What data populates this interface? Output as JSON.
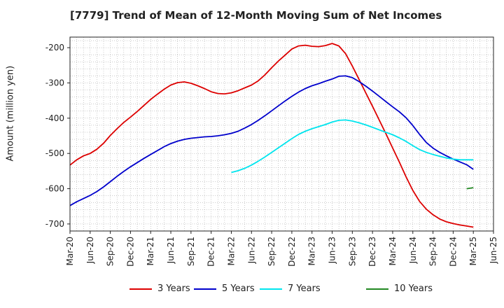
{
  "chart_data": {
    "type": "line",
    "title": "[7779]  Trend of Mean of 12-Month Moving Sum of Net Incomes",
    "xlabel": "",
    "ylabel": "Amount (million yen)",
    "ylim": [
      -720,
      -170
    ],
    "y_ticks": [
      -200,
      -300,
      -400,
      -500,
      -600,
      -700
    ],
    "x_ticks": [
      "Mar-20",
      "Jun-20",
      "Sep-20",
      "Dec-20",
      "Mar-21",
      "Jun-21",
      "Sep-21",
      "Dec-21",
      "Mar-22",
      "Jun-22",
      "Sep-22",
      "Dec-22",
      "Mar-23",
      "Jun-23",
      "Sep-23",
      "Dec-23",
      "Mar-24",
      "Jun-24",
      "Sep-24",
      "Dec-24",
      "Mar-25",
      "Jun-25"
    ],
    "grid": true,
    "legend_position": "bottom",
    "series": [
      {
        "name": "3 Years",
        "color": "#dd0000",
        "values": [
          [
            "2020-03",
            -533
          ],
          [
            "2020-04",
            -518
          ],
          [
            "2020-05",
            -507
          ],
          [
            "2020-06",
            -500
          ],
          [
            "2020-07",
            -488
          ],
          [
            "2020-08",
            -471
          ],
          [
            "2020-09",
            -449
          ],
          [
            "2020-10",
            -430
          ],
          [
            "2020-11",
            -412
          ],
          [
            "2020-12",
            -397
          ],
          [
            "2021-01",
            -381
          ],
          [
            "2021-02",
            -364
          ],
          [
            "2021-03",
            -347
          ],
          [
            "2021-04",
            -332
          ],
          [
            "2021-05",
            -318
          ],
          [
            "2021-06",
            -306
          ],
          [
            "2021-07",
            -299
          ],
          [
            "2021-08",
            -297
          ],
          [
            "2021-09",
            -301
          ],
          [
            "2021-10",
            -308
          ],
          [
            "2021-11",
            -316
          ],
          [
            "2021-12",
            -325
          ],
          [
            "2022-01",
            -330
          ],
          [
            "2022-02",
            -331
          ],
          [
            "2022-03",
            -328
          ],
          [
            "2022-04",
            -322
          ],
          [
            "2022-05",
            -314
          ],
          [
            "2022-06",
            -306
          ],
          [
            "2022-07",
            -294
          ],
          [
            "2022-08",
            -277
          ],
          [
            "2022-09",
            -257
          ],
          [
            "2022-10",
            -238
          ],
          [
            "2022-11",
            -221
          ],
          [
            "2022-12",
            -204
          ],
          [
            "2023-01",
            -195
          ],
          [
            "2023-02",
            -193
          ],
          [
            "2023-03",
            -196
          ],
          [
            "2023-04",
            -197
          ],
          [
            "2023-05",
            -194
          ],
          [
            "2023-06",
            -188
          ],
          [
            "2023-07",
            -195
          ],
          [
            "2023-08",
            -217
          ],
          [
            "2023-09",
            -252
          ],
          [
            "2023-10",
            -290
          ],
          [
            "2023-11",
            -328
          ],
          [
            "2023-12",
            -366
          ],
          [
            "2024-01",
            -405
          ],
          [
            "2024-02",
            -444
          ],
          [
            "2024-03",
            -485
          ],
          [
            "2024-04",
            -525
          ],
          [
            "2024-05",
            -567
          ],
          [
            "2024-06",
            -605
          ],
          [
            "2024-07",
            -636
          ],
          [
            "2024-08",
            -658
          ],
          [
            "2024-09",
            -674
          ],
          [
            "2024-10",
            -686
          ],
          [
            "2024-11",
            -694
          ],
          [
            "2024-12",
            -699
          ],
          [
            "2025-01",
            -703
          ],
          [
            "2025-02",
            -706
          ],
          [
            "2025-03",
            -709
          ]
        ]
      },
      {
        "name": "5 Years",
        "color": "#0000cc",
        "values": [
          [
            "2020-03",
            -648
          ],
          [
            "2020-04",
            -637
          ],
          [
            "2020-05",
            -628
          ],
          [
            "2020-06",
            -619
          ],
          [
            "2020-07",
            -608
          ],
          [
            "2020-08",
            -595
          ],
          [
            "2020-09",
            -580
          ],
          [
            "2020-10",
            -565
          ],
          [
            "2020-11",
            -551
          ],
          [
            "2020-12",
            -538
          ],
          [
            "2021-01",
            -526
          ],
          [
            "2021-02",
            -514
          ],
          [
            "2021-03",
            -503
          ],
          [
            "2021-04",
            -492
          ],
          [
            "2021-05",
            -481
          ],
          [
            "2021-06",
            -472
          ],
          [
            "2021-07",
            -465
          ],
          [
            "2021-08",
            -460
          ],
          [
            "2021-09",
            -457
          ],
          [
            "2021-10",
            -455
          ],
          [
            "2021-11",
            -453
          ],
          [
            "2021-12",
            -452
          ],
          [
            "2022-01",
            -450
          ],
          [
            "2022-02",
            -447
          ],
          [
            "2022-03",
            -443
          ],
          [
            "2022-04",
            -437
          ],
          [
            "2022-05",
            -428
          ],
          [
            "2022-06",
            -418
          ],
          [
            "2022-07",
            -406
          ],
          [
            "2022-08",
            -393
          ],
          [
            "2022-09",
            -379
          ],
          [
            "2022-10",
            -365
          ],
          [
            "2022-11",
            -351
          ],
          [
            "2022-12",
            -338
          ],
          [
            "2023-01",
            -326
          ],
          [
            "2023-02",
            -316
          ],
          [
            "2023-03",
            -308
          ],
          [
            "2023-04",
            -302
          ],
          [
            "2023-05",
            -295
          ],
          [
            "2023-06",
            -289
          ],
          [
            "2023-07",
            -281
          ],
          [
            "2023-08",
            -280
          ],
          [
            "2023-09",
            -285
          ],
          [
            "2023-10",
            -296
          ],
          [
            "2023-11",
            -309
          ],
          [
            "2023-12",
            -323
          ],
          [
            "2024-01",
            -338
          ],
          [
            "2024-02",
            -353
          ],
          [
            "2024-03",
            -368
          ],
          [
            "2024-04",
            -382
          ],
          [
            "2024-05",
            -399
          ],
          [
            "2024-06",
            -421
          ],
          [
            "2024-07",
            -446
          ],
          [
            "2024-08",
            -469
          ],
          [
            "2024-09",
            -485
          ],
          [
            "2024-10",
            -497
          ],
          [
            "2024-11",
            -507
          ],
          [
            "2024-12",
            -516
          ],
          [
            "2025-01",
            -524
          ],
          [
            "2025-02",
            -532
          ],
          [
            "2025-03",
            -545
          ]
        ]
      },
      {
        "name": "7 Years",
        "color": "#00e5ee",
        "values": [
          [
            "2022-03",
            -554
          ],
          [
            "2022-04",
            -549
          ],
          [
            "2022-05",
            -542
          ],
          [
            "2022-06",
            -533
          ],
          [
            "2022-07",
            -522
          ],
          [
            "2022-08",
            -510
          ],
          [
            "2022-09",
            -497
          ],
          [
            "2022-10",
            -484
          ],
          [
            "2022-11",
            -471
          ],
          [
            "2022-12",
            -458
          ],
          [
            "2023-01",
            -446
          ],
          [
            "2023-02",
            -437
          ],
          [
            "2023-03",
            -430
          ],
          [
            "2023-04",
            -424
          ],
          [
            "2023-05",
            -418
          ],
          [
            "2023-06",
            -411
          ],
          [
            "2023-07",
            -406
          ],
          [
            "2023-08",
            -405
          ],
          [
            "2023-09",
            -408
          ],
          [
            "2023-10",
            -413
          ],
          [
            "2023-11",
            -419
          ],
          [
            "2023-12",
            -426
          ],
          [
            "2024-01",
            -433
          ],
          [
            "2024-02",
            -440
          ],
          [
            "2024-03",
            -447
          ],
          [
            "2024-04",
            -456
          ],
          [
            "2024-05",
            -466
          ],
          [
            "2024-06",
            -478
          ],
          [
            "2024-07",
            -489
          ],
          [
            "2024-08",
            -497
          ],
          [
            "2024-09",
            -503
          ],
          [
            "2024-10",
            -508
          ],
          [
            "2024-11",
            -513
          ],
          [
            "2024-12",
            -516
          ],
          [
            "2025-01",
            -518
          ],
          [
            "2025-02",
            -518
          ],
          [
            "2025-03",
            -518
          ]
        ]
      },
      {
        "name": "10 Years",
        "color": "#228822",
        "values": [
          [
            "2025-02",
            -600
          ],
          [
            "2025-03",
            -597
          ]
        ]
      }
    ]
  }
}
